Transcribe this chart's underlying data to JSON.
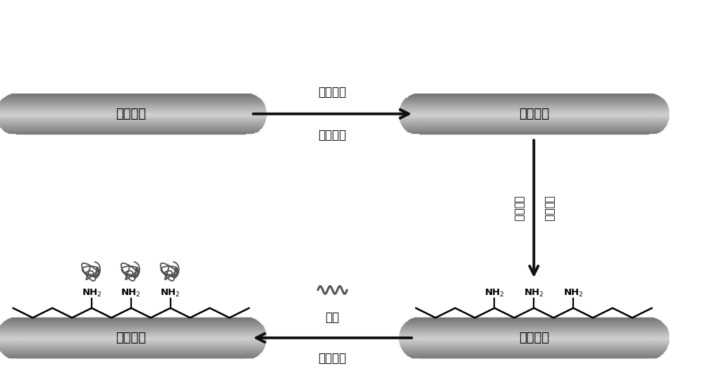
{
  "bg_color": "#ffffff",
  "box_text": "基底材料",
  "arrow_color": "#111111",
  "label_arrow1_line1": "酚类分子",
  "label_arrow1_line2": "碱性条件",
  "label_arrow2_left": "多胺分子",
  "label_arrow2_right": "碱性条件",
  "label_arrow3_line1": "肝素",
  "label_arrow3_line2": "碳二亚胺",
  "fig_width": 10.0,
  "fig_height": 5.54
}
